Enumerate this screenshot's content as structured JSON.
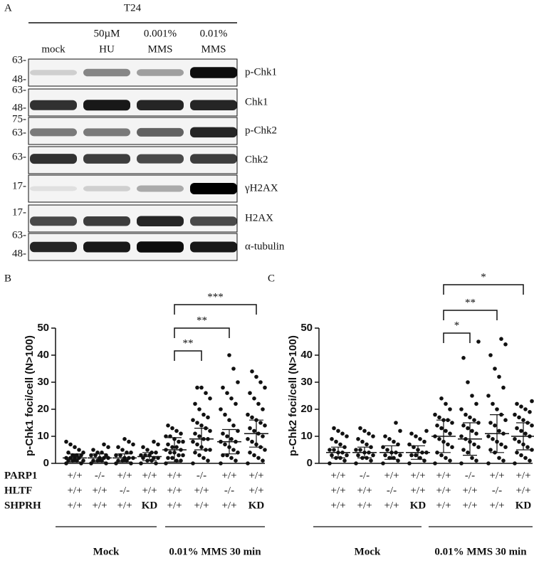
{
  "panel_a": {
    "label": "A",
    "cell_line": "T24",
    "lanes": [
      [
        "mock"
      ],
      [
        "50µM",
        "HU"
      ],
      [
        "0.001%",
        "MMS"
      ],
      [
        "0.01%",
        "MMS"
      ]
    ],
    "blots": [
      {
        "name": "p-Chk1",
        "markers": [
          "63-",
          "48-"
        ]
      },
      {
        "name": "Chk1",
        "markers": [
          "63-",
          "48-"
        ]
      },
      {
        "name": "p-Chk2",
        "markers": [
          "75-",
          "63-"
        ]
      },
      {
        "name": "Chk2",
        "markers": [
          "63-"
        ]
      },
      {
        "name": "γH2AX",
        "markers": [
          "17-"
        ]
      },
      {
        "name": "H2AX",
        "markers": [
          "17-"
        ]
      },
      {
        "name": "α-tubulin",
        "markers": [
          "63-",
          "48-"
        ]
      }
    ]
  },
  "chart_data": [
    {
      "type": "strip",
      "panel": "B",
      "ylabel": "p-Chk1 foci/cell (N>100)",
      "ylim": [
        0,
        50
      ],
      "yticks": [
        0,
        10,
        20,
        30,
        40,
        50
      ],
      "groups": [
        {
          "values": [
            0,
            0,
            1,
            1,
            1,
            1,
            2,
            2,
            2,
            2,
            3,
            3,
            3,
            4,
            4,
            5,
            6,
            7,
            8
          ],
          "mean": 2,
          "err": 1.5
        },
        {
          "values": [
            0,
            0,
            1,
            1,
            1,
            2,
            2,
            2,
            3,
            3,
            3,
            4,
            4,
            5,
            6,
            7
          ],
          "mean": 2,
          "err": 1.5
        },
        {
          "values": [
            0,
            0,
            1,
            1,
            1,
            2,
            2,
            2,
            3,
            3,
            4,
            4,
            5,
            6,
            7,
            8,
            9
          ],
          "mean": 2,
          "err": 1.5
        },
        {
          "values": [
            0,
            0,
            1,
            1,
            2,
            2,
            2,
            3,
            3,
            3,
            4,
            4,
            5,
            6,
            7,
            8
          ],
          "mean": 2.5,
          "err": 1.5
        },
        {
          "values": [
            0,
            1,
            1,
            2,
            2,
            3,
            3,
            4,
            4,
            5,
            5,
            6,
            6,
            7,
            8,
            8,
            9,
            10,
            10,
            11,
            12,
            13,
            14
          ],
          "mean": 5,
          "err": 4.5
        },
        {
          "values": [
            0,
            1,
            2,
            3,
            4,
            5,
            5,
            6,
            7,
            8,
            9,
            9,
            10,
            11,
            12,
            13,
            14,
            15,
            16,
            17,
            18,
            20,
            22,
            24,
            26,
            28,
            28
          ],
          "mean": 9,
          "err": 4
        },
        {
          "values": [
            0,
            1,
            2,
            3,
            3,
            4,
            5,
            6,
            7,
            8,
            8,
            9,
            10,
            11,
            12,
            14,
            16,
            18,
            20,
            22,
            24,
            26,
            28,
            30,
            35,
            40
          ],
          "mean": 8,
          "err": 4.5
        },
        {
          "values": [
            0,
            1,
            2,
            3,
            4,
            5,
            6,
            7,
            8,
            9,
            10,
            11,
            12,
            13,
            14,
            15,
            16,
            17,
            18,
            20,
            22,
            24,
            26,
            28,
            30,
            32,
            34
          ],
          "mean": 11,
          "err": 5
        }
      ],
      "significance": [
        "**",
        "**",
        "***"
      ],
      "genotype": [
        {
          "name": "PARP1",
          "values": [
            "+/+",
            "-/-",
            "+/+",
            "+/+",
            "+/+",
            "-/-",
            "+/+",
            "+/+"
          ]
        },
        {
          "name": "HLTF",
          "values": [
            "+/+",
            "+/+",
            "-/-",
            "+/+",
            "+/+",
            "+/+",
            "-/-",
            "+/+"
          ]
        },
        {
          "name": "SHPRH",
          "values": [
            "+/+",
            "+/+",
            "+/+",
            "KD",
            "+/+",
            "+/+",
            "+/+",
            "KD"
          ]
        }
      ],
      "conditions": [
        "Mock",
        "0.01% MMS 30 min"
      ]
    },
    {
      "type": "strip",
      "panel": "C",
      "ylabel": "p-Chk2 foci/cell (N>100)",
      "ylim": [
        0,
        50
      ],
      "yticks": [
        0,
        10,
        20,
        30,
        40,
        50
      ],
      "groups": [
        {
          "values": [
            0,
            1,
            2,
            2,
            3,
            3,
            4,
            4,
            5,
            5,
            6,
            7,
            8,
            9,
            10,
            11,
            12,
            13
          ],
          "mean": 4,
          "err": 2
        },
        {
          "values": [
            0,
            1,
            2,
            2,
            3,
            3,
            4,
            4,
            5,
            5,
            6,
            7,
            8,
            9,
            10,
            11,
            12,
            13
          ],
          "mean": 4,
          "err": 2
        },
        {
          "values": [
            0,
            1,
            2,
            2,
            3,
            3,
            4,
            4,
            5,
            6,
            7,
            8,
            9,
            10,
            12,
            15
          ],
          "mean": 4,
          "err": 2.5
        },
        {
          "values": [
            0,
            1,
            2,
            3,
            3,
            4,
            4,
            5,
            6,
            7,
            8,
            9,
            10,
            11,
            12
          ],
          "mean": 4,
          "err": 2.5
        },
        {
          "values": [
            0,
            1,
            2,
            3,
            4,
            6,
            7,
            8,
            9,
            10,
            11,
            12,
            13,
            14,
            15,
            16,
            16,
            17,
            18,
            20,
            22,
            24
          ],
          "mean": 10,
          "err": 6
        },
        {
          "values": [
            0,
            1,
            2,
            4,
            5,
            6,
            7,
            8,
            9,
            10,
            11,
            12,
            13,
            14,
            15,
            16,
            17,
            18,
            20,
            22,
            25,
            30,
            39,
            45
          ],
          "mean": 9,
          "err": 6
        },
        {
          "values": [
            0,
            1,
            2,
            4,
            5,
            6,
            7,
            8,
            9,
            10,
            11,
            12,
            14,
            15,
            16,
            18,
            20,
            22,
            25,
            28,
            32,
            35,
            40,
            44,
            46
          ],
          "mean": 11,
          "err": 7
        },
        {
          "values": [
            0,
            1,
            2,
            3,
            4,
            5,
            6,
            7,
            8,
            9,
            10,
            11,
            12,
            13,
            14,
            15,
            16,
            17,
            18,
            19,
            20,
            21,
            22,
            23
          ],
          "mean": 10,
          "err": 5
        }
      ],
      "significance": [
        "*",
        "**",
        "*"
      ],
      "genotype": [
        {
          "name": "PARP1",
          "values": [
            "+/+",
            "-/-",
            "+/+",
            "+/+",
            "+/+",
            "-/-",
            "+/+",
            "+/+"
          ]
        },
        {
          "name": "HLTF",
          "values": [
            "+/+",
            "+/+",
            "-/-",
            "+/+",
            "+/+",
            "+/+",
            "-/-",
            "+/+"
          ]
        },
        {
          "name": "SHPRH",
          "values": [
            "+/+",
            "+/+",
            "+/+",
            "KD",
            "+/+",
            "+/+",
            "+/+",
            "KD"
          ]
        }
      ],
      "conditions": [
        "Mock",
        "0.01% MMS 30 min"
      ]
    }
  ]
}
